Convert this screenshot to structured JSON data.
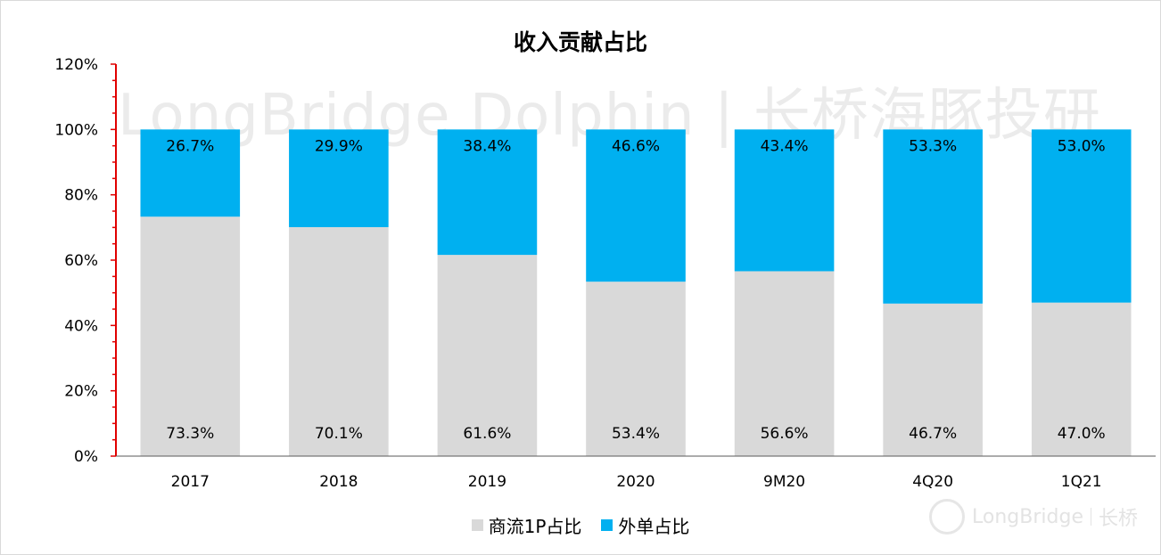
{
  "watermark": "LongBridge Dolphin | 长桥海豚投研",
  "brand": {
    "name": "LongBridge",
    "sub": "长桥"
  },
  "colors": {
    "series0": "#d9d9d9",
    "series1": "#00b0f0",
    "axis": "#e00000",
    "text": "#000000"
  },
  "chart_data": {
    "type": "bar",
    "stacked": true,
    "title": "收入贡献占比",
    "categories": [
      "2017",
      "2018",
      "2019",
      "2020",
      "9M20",
      "4Q20",
      "1Q21"
    ],
    "series": [
      {
        "name": "商流1P占比",
        "values": [
          73.3,
          70.1,
          61.6,
          53.4,
          56.6,
          46.7,
          47.0
        ],
        "labels": [
          "73.3%",
          "70.1%",
          "61.6%",
          "53.4%",
          "56.6%",
          "46.7%",
          "47.0%"
        ]
      },
      {
        "name": "外单占比",
        "values": [
          26.7,
          29.9,
          38.4,
          46.6,
          43.4,
          53.3,
          53.0
        ],
        "labels": [
          "26.7%",
          "29.9%",
          "38.4%",
          "46.6%",
          "43.4%",
          "53.3%",
          "53.0%"
        ]
      }
    ],
    "ylim": [
      0,
      120
    ],
    "yticks": [
      "0%",
      "20%",
      "40%",
      "60%",
      "80%",
      "100%",
      "120%"
    ],
    "legend_position": "bottom",
    "grid": false
  }
}
